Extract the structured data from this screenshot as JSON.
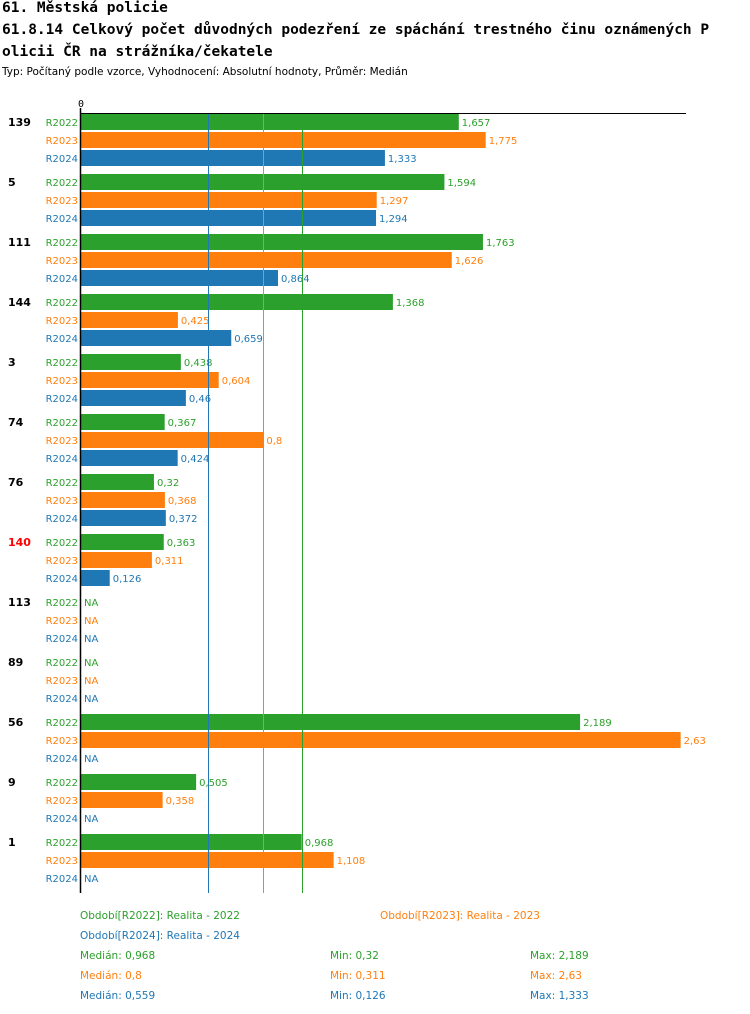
{
  "header": {
    "line1": "61. Městská policie",
    "line2": "61.8.14 Celkový počet důvodných podezření ze spáchání trestného činu oznámených P",
    "line3": "olicii ČR na strážníka/čekatele",
    "subtitle": "Typ: Počítaný podle vzorce, Vyhodnocení: Absolutní hodnoty, Průměr: Medián"
  },
  "colors": {
    "R2022": "#2ca02c",
    "R2023": "#ff7f0e",
    "R2024": "#1f77b4",
    "highlight": "#ff0000",
    "text": "#000000"
  },
  "chart_data": {
    "type": "bar",
    "orientation": "horizontal",
    "axis_zero_label": "0",
    "xlim": [
      0,
      2.63
    ],
    "categories": [
      "139",
      "5",
      "111",
      "144",
      "3",
      "74",
      "76",
      "140",
      "113",
      "89",
      "56",
      "9",
      "1"
    ],
    "highlighted_category": "140",
    "missing_label": "NA",
    "series": [
      {
        "name": "R2022",
        "values": [
          1.657,
          1.594,
          1.763,
          1.368,
          0.438,
          0.367,
          0.32,
          0.363,
          null,
          null,
          2.189,
          0.505,
          0.968
        ],
        "labels": [
          "1,657",
          "1,594",
          "1,763",
          "1,368",
          "0,438",
          "0,367",
          "0,32",
          "0,363",
          "NA",
          "NA",
          "2,189",
          "0,505",
          "0,968"
        ]
      },
      {
        "name": "R2023",
        "values": [
          1.775,
          1.297,
          1.626,
          0.425,
          0.604,
          0.8,
          0.368,
          0.311,
          null,
          null,
          2.63,
          0.358,
          1.108
        ],
        "labels": [
          "1,775",
          "1,297",
          "1,626",
          "0,425",
          "0,604",
          "0,8",
          "0,368",
          "0,311",
          "NA",
          "NA",
          "2,63",
          "0,358",
          "1,108"
        ]
      },
      {
        "name": "R2024",
        "values": [
          1.333,
          1.294,
          0.864,
          0.659,
          0.46,
          0.424,
          0.372,
          0.126,
          null,
          null,
          null,
          null,
          null
        ],
        "labels": [
          "1,333",
          "1,294",
          "0,864",
          "0,659",
          "0,46",
          "0,424",
          "0,372",
          "0,126",
          "NA",
          "NA",
          "NA",
          "NA",
          "NA"
        ]
      }
    ],
    "median_lines": [
      {
        "series": "R2022",
        "value": 0.968
      },
      {
        "series": "R2023",
        "value": 0.8
      },
      {
        "series": "R2024",
        "value": 0.559
      }
    ]
  },
  "legend": {
    "r2022": "Období[R2022]: Realita - 2022",
    "r2023": "Období[R2023]: Realita - 2023",
    "r2024": "Období[R2024]: Realita - 2024"
  },
  "stats": {
    "r2022": {
      "median": "Medián: 0,968",
      "min": "Min: 0,32",
      "max": "Max: 2,189"
    },
    "r2023": {
      "median": "Medián: 0,8",
      "min": "Min: 0,311",
      "max": "Max: 2,63"
    },
    "r2024": {
      "median": "Medián: 0,559",
      "min": "Min: 0,126",
      "max": "Max: 1,333"
    }
  }
}
